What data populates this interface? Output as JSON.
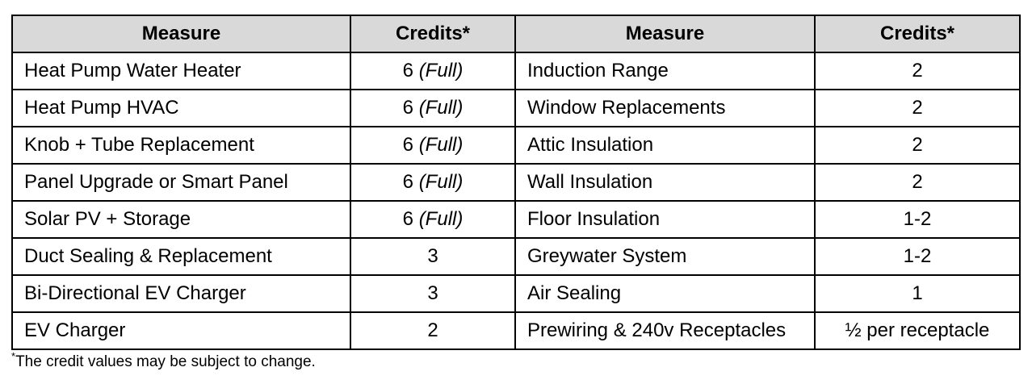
{
  "table": {
    "header": [
      "Measure",
      "Credits*",
      "Measure",
      "Credits*"
    ],
    "rows": [
      [
        "Heat Pump Water Heater",
        [
          "6",
          "(Full)"
        ],
        "Induction Range",
        "2"
      ],
      [
        "Heat Pump HVAC",
        [
          "6",
          "(Full)"
        ],
        "Window Replacements",
        "2"
      ],
      [
        "Knob + Tube Replacement",
        [
          "6",
          "(Full)"
        ],
        "Attic Insulation",
        "2"
      ],
      [
        "Panel Upgrade or Smart Panel",
        [
          "6",
          "(Full)"
        ],
        "Wall Insulation",
        "2"
      ],
      [
        "Solar PV + Storage",
        [
          "6",
          "(Full)"
        ],
        "Floor Insulation",
        "1-2"
      ],
      [
        "Duct Sealing & Replacement",
        "3",
        "Greywater System",
        "1-2"
      ],
      [
        "Bi-Directional EV Charger",
        "3",
        "Air Sealing",
        "1"
      ],
      [
        "EV Charger",
        "2",
        "Prewiring & 240v Receptacles",
        "½ per receptacle"
      ]
    ]
  },
  "footnote": {
    "marker": "*",
    "text": "The credit values may be subject to change."
  }
}
